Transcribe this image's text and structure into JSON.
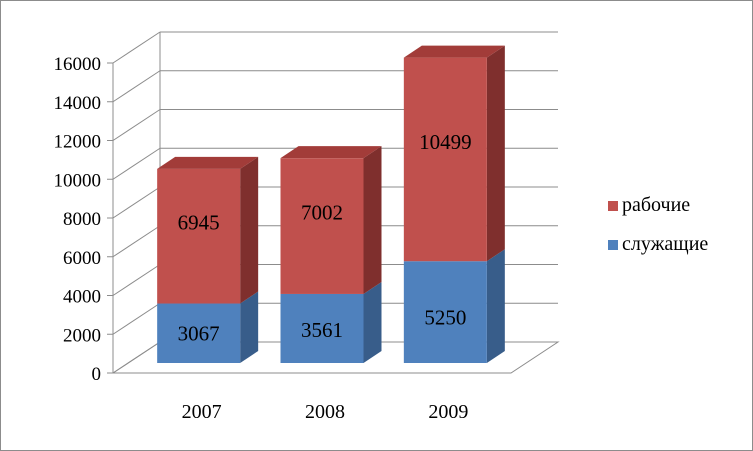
{
  "chart_data": {
    "type": "bar",
    "stacked": true,
    "three_d": true,
    "categories": [
      "2007",
      "2008",
      "2009"
    ],
    "series": [
      {
        "name": "служащие",
        "values": [
          3067,
          3561,
          5250
        ],
        "color": "#4f81bd",
        "side_color": "#385d8a",
        "top_color": "#5b8fd0"
      },
      {
        "name": "рабочие",
        "values": [
          6945,
          7002,
          10499
        ],
        "color": "#c0504d",
        "side_color": "#7f2f2d",
        "top_color": "#a23c39"
      }
    ],
    "ylim": [
      0,
      16000
    ],
    "y_ticks": [
      "0",
      "2000",
      "4000",
      "6000",
      "8000",
      "10000",
      "12000",
      "14000",
      "16000"
    ],
    "grid": true,
    "legend_position": "right",
    "legend_order": [
      "рабочие",
      "служащие"
    ]
  }
}
